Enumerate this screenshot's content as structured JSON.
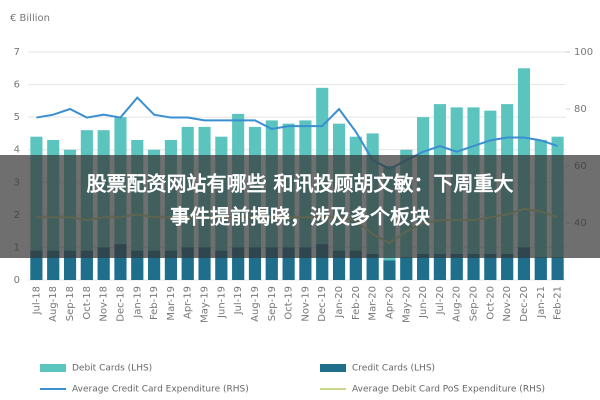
{
  "chart_data": {
    "type": "bar",
    "y_axis_label": "€ Billion",
    "categories": [
      "Jul-18",
      "Aug-18",
      "Sep-18",
      "Oct-18",
      "Nov-18",
      "Dec-18",
      "Jan-19",
      "Feb-19",
      "Mar-19",
      "Apr-19",
      "May-19",
      "Jun-19",
      "Jul-19",
      "Aug-19",
      "Sep-19",
      "Oct-19",
      "Nov-19",
      "Dec-19",
      "Jan-20",
      "Feb-20",
      "Mar-20",
      "Apr-20",
      "May-20",
      "Jun-20",
      "Jul-20",
      "Aug-20",
      "Sep-20",
      "Oct-20",
      "Nov-20",
      "Dec-20",
      "Jan-21",
      "Feb-21"
    ],
    "series": [
      {
        "name": "Debit Cards (LHS)",
        "color": "#5bc4bf",
        "values": [
          4.4,
          4.3,
          4.0,
          4.6,
          4.6,
          5.0,
          4.3,
          4.0,
          4.3,
          4.7,
          4.7,
          4.4,
          5.1,
          4.7,
          4.9,
          4.8,
          4.9,
          5.9,
          4.8,
          4.4,
          4.5,
          3.5,
          4.0,
          5.0,
          5.4,
          5.3,
          5.3,
          5.2,
          5.4,
          6.5,
          4.3,
          4.4
        ]
      },
      {
        "name": "Credit Cards (LHS)",
        "color": "#1f6e8c",
        "values": [
          0.9,
          0.9,
          0.9,
          0.9,
          1.0,
          1.1,
          0.9,
          0.9,
          0.9,
          1.0,
          1.0,
          0.9,
          1.0,
          1.0,
          1.0,
          1.0,
          1.0,
          1.1,
          0.9,
          0.9,
          0.8,
          0.6,
          0.7,
          0.8,
          0.8,
          0.8,
          0.8,
          0.8,
          0.8,
          1.0,
          0.7,
          0.7
        ]
      },
      {
        "name": "Average Credit Card Expenditure (RHS)",
        "color": "#3a8fd0",
        "axis": "y2",
        "values": [
          77,
          78,
          80,
          77,
          78,
          77,
          84,
          78,
          77,
          77,
          76,
          76,
          76,
          76,
          73,
          74,
          74,
          74,
          80,
          72,
          62,
          59,
          62,
          65,
          67,
          65,
          67,
          69,
          70,
          70,
          69,
          67
        ]
      },
      {
        "name": "Average Debit Card PoS Expenditure (RHS)",
        "color": "#c8d88a",
        "axis": "y2",
        "values": [
          42,
          42,
          42,
          41,
          42,
          42,
          43,
          42,
          42,
          42,
          42,
          42,
          42,
          42,
          42,
          42,
          42,
          42,
          42,
          41,
          36,
          33,
          37,
          40,
          41,
          41,
          41,
          42,
          43,
          45,
          44,
          42
        ]
      }
    ],
    "ylim": [
      0,
      7
    ],
    "yticks": [
      0,
      1,
      2,
      3,
      4,
      5,
      6,
      7
    ],
    "y2lim": [
      20,
      100
    ],
    "y2ticks": [
      40,
      60,
      80,
      100
    ],
    "grid": true,
    "overlay": [
      "股票配资网站有哪些 和讯投顾胡文敏：下周重大",
      "事件提前揭晓，涉及多个板块"
    ]
  }
}
